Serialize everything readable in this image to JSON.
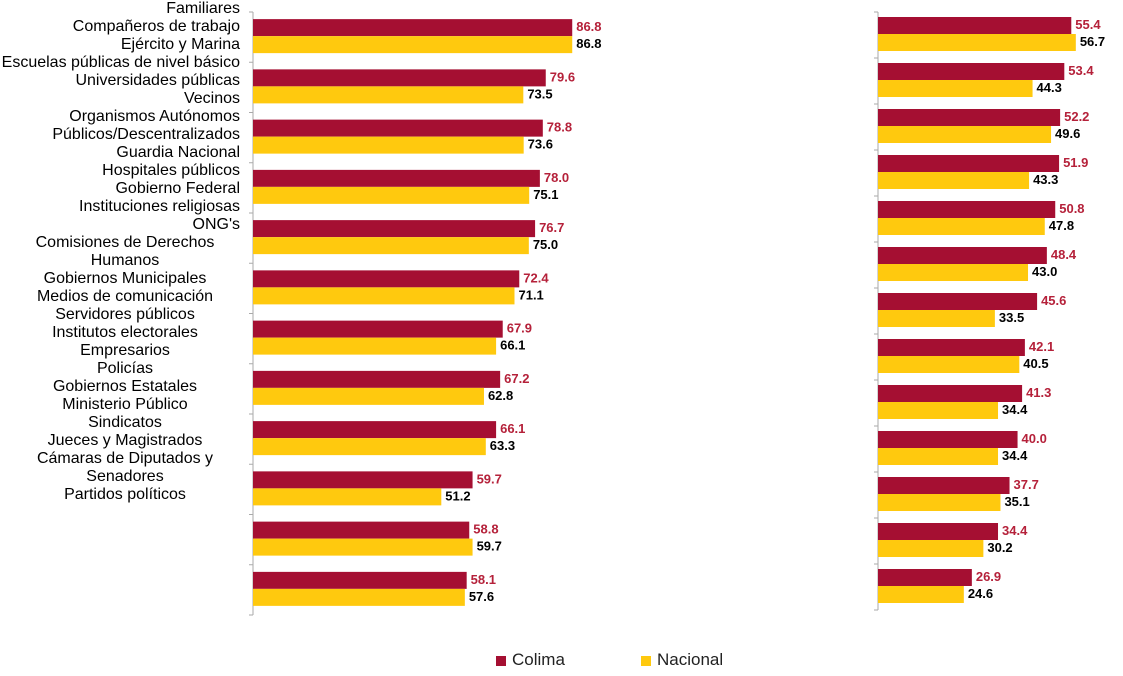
{
  "chart_data": [
    {
      "type": "bar",
      "orientation": "horizontal",
      "categories": [
        "Familiares",
        "Compañeros de trabajo",
        "Ejército y Marina",
        "Escuelas públicas de nivel\nbásico",
        "Universidades públicas",
        "Vecinos",
        "Organismos Autónomos\nPúblicos/Descentralizados",
        "Guardia Nacional",
        "Hospitales públicos",
        "Gobierno Federal",
        "Instituciones religiosas",
        "ONG's"
      ],
      "series": [
        {
          "name": "Colima",
          "color": "#a50f32",
          "values": [
            86.8,
            79.6,
            78.8,
            78.0,
            76.7,
            72.4,
            67.9,
            67.2,
            66.1,
            59.7,
            58.8,
            58.1
          ],
          "value_labels": [
            "86.8",
            "79.6",
            "78.8",
            "78.0",
            "76.7",
            "72.4",
            "67.9",
            "67.2",
            "66.1",
            "59.7",
            "58.8",
            "58.1"
          ]
        },
        {
          "name": "Nacional",
          "color": "#ffc90e",
          "values": [
            86.8,
            73.5,
            73.6,
            75.1,
            75.0,
            71.1,
            66.1,
            62.8,
            63.3,
            51.2,
            59.7,
            57.6
          ],
          "value_labels": [
            "86.8",
            "73.5",
            "73.6",
            "75.1",
            "75.0",
            "71.1",
            "66.1",
            "62.8",
            "63.3",
            "51.2",
            "59.7",
            "57.6"
          ]
        }
      ],
      "xlim": [
        0,
        90
      ]
    },
    {
      "type": "bar",
      "orientation": "horizontal",
      "categories": [
        "Comisiones de Derechos\nHumanos",
        "Gobiernos Municipales",
        "Medios de comunicación",
        "Servidores públicos",
        "Institutos electorales",
        "Empresarios",
        "Policías",
        "Gobiernos Estatales",
        "Ministerio Público",
        "Sindicatos",
        "Jueces y Magistrados",
        "Cámaras de Diputados y\nSenadores",
        "Partidos políticos"
      ],
      "series": [
        {
          "color": "#a50f32",
          "values": [
            55.4,
            53.4,
            52.2,
            51.9,
            50.8,
            48.4,
            45.6,
            42.1,
            41.3,
            40.0,
            37.7,
            34.4,
            26.9
          ],
          "value_labels": [
            "55.4",
            "53.4",
            "52.2",
            "51.9",
            "50.8",
            "48.4",
            "45.6",
            "42.1",
            "41.3",
            "40.0",
            "37.7",
            "34.4",
            "26.9"
          ]
        },
        {
          "color": "#ffc90e",
          "values": [
            56.7,
            44.3,
            49.6,
            43.3,
            47.8,
            43.0,
            33.5,
            40.5,
            34.4,
            34.4,
            35.1,
            30.2,
            24.6
          ],
          "value_labels": [
            "56.7",
            "44.3",
            "49.6",
            "43.3",
            "47.8",
            "43.0",
            "33.5",
            "40.5",
            "34.4",
            "34.4",
            "35.1",
            "30.2",
            "24.6"
          ]
        }
      ],
      "xlim": [
        0,
        90
      ]
    }
  ]
}
